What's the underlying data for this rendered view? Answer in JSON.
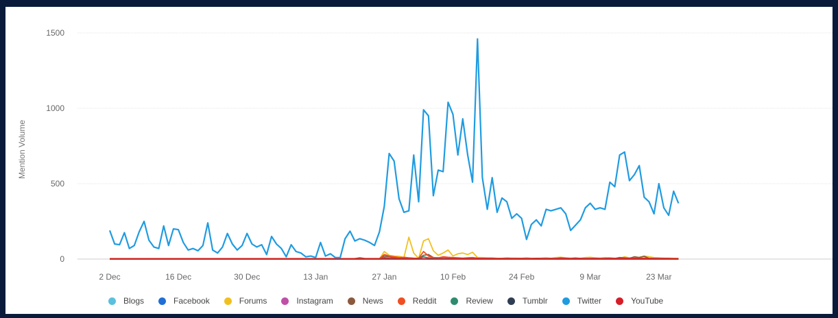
{
  "chart_data": {
    "type": "line",
    "title": "",
    "xlabel": "",
    "ylabel": "Mention Volume",
    "ylim": [
      0,
      1500
    ],
    "y_ticks": [
      0,
      500,
      1000,
      1500
    ],
    "x_ticks": [
      {
        "label": "2 Dec",
        "day": 0
      },
      {
        "label": "16 Dec",
        "day": 14
      },
      {
        "label": "30 Dec",
        "day": 28
      },
      {
        "label": "13 Jan",
        "day": 42
      },
      {
        "label": "27 Jan",
        "day": 56
      },
      {
        "label": "10 Feb",
        "day": 70
      },
      {
        "label": "24 Feb",
        "day": 84
      },
      {
        "label": "9 Mar",
        "day": 98
      },
      {
        "label": "23 Mar",
        "day": 112
      }
    ],
    "grid": true,
    "legend_position": "bottom",
    "series": [
      {
        "name": "Blogs",
        "color": "#5bc0de",
        "values": [
          0,
          0,
          0,
          0,
          0,
          0,
          0,
          0,
          0,
          0,
          0,
          0,
          0,
          0,
          0,
          0,
          0,
          0,
          0,
          0,
          0,
          0,
          0,
          0,
          0,
          0,
          0,
          0,
          0,
          0,
          0,
          0,
          0,
          0,
          0,
          0,
          0,
          0,
          0,
          0,
          0,
          0,
          0,
          0,
          0,
          0,
          0,
          0,
          0,
          0,
          0,
          0,
          0,
          0,
          0,
          0,
          8,
          5,
          3,
          2,
          2,
          1,
          3,
          5,
          2,
          3,
          6,
          4,
          2,
          1,
          3,
          2,
          2,
          1,
          1,
          2,
          1,
          1,
          2,
          1,
          1,
          1,
          1,
          1,
          1,
          1,
          1,
          1,
          1,
          1,
          1,
          1,
          1,
          1,
          1,
          1,
          1,
          1,
          1,
          1,
          1,
          1,
          1,
          1,
          1,
          1,
          1,
          1,
          1,
          1,
          1,
          1,
          1,
          1,
          1,
          1,
          1
        ]
      },
      {
        "name": "Facebook",
        "color": "#1f6fd6",
        "values": [
          0,
          0,
          0,
          0,
          0,
          0,
          0,
          0,
          0,
          0,
          0,
          0,
          0,
          0,
          0,
          0,
          0,
          0,
          0,
          0,
          0,
          0,
          0,
          0,
          0,
          0,
          0,
          0,
          0,
          0,
          0,
          0,
          0,
          0,
          0,
          0,
          0,
          0,
          0,
          0,
          0,
          0,
          0,
          0,
          0,
          0,
          0,
          0,
          0,
          0,
          0,
          0,
          0,
          0,
          0,
          0,
          0,
          0,
          0,
          0,
          0,
          0,
          0,
          0,
          0,
          0,
          0,
          0,
          0,
          0,
          0,
          0,
          0,
          0,
          0,
          0,
          0,
          0,
          0,
          0,
          0,
          0,
          0,
          0,
          0,
          0,
          0,
          0,
          0,
          0,
          0,
          0,
          0,
          0,
          0,
          0,
          0,
          0,
          0,
          0,
          0,
          0,
          0,
          0,
          0,
          0,
          0,
          0,
          0,
          0,
          0,
          0,
          0,
          0,
          0,
          0,
          0
        ]
      },
      {
        "name": "Forums",
        "color": "#f0c020",
        "values": [
          0,
          0,
          0,
          0,
          0,
          0,
          0,
          0,
          0,
          0,
          0,
          0,
          0,
          0,
          0,
          0,
          0,
          0,
          0,
          0,
          0,
          0,
          0,
          0,
          0,
          0,
          0,
          0,
          0,
          0,
          0,
          0,
          0,
          0,
          0,
          0,
          0,
          0,
          0,
          0,
          0,
          0,
          0,
          0,
          0,
          0,
          0,
          0,
          0,
          0,
          0,
          0,
          0,
          0,
          0,
          0,
          50,
          25,
          20,
          18,
          10,
          145,
          40,
          5,
          120,
          135,
          55,
          25,
          40,
          60,
          20,
          35,
          40,
          30,
          45,
          10,
          10,
          8,
          8,
          5,
          5,
          8,
          6,
          6,
          5,
          8,
          5,
          5,
          6,
          8,
          5,
          10,
          12,
          8,
          6,
          8,
          5,
          10,
          12,
          8,
          6,
          10,
          8,
          6,
          5,
          15,
          8,
          6,
          12,
          20,
          15,
          10,
          8,
          6,
          6,
          5,
          4
        ]
      },
      {
        "name": "Instagram",
        "color": "#c04fa8",
        "values": [
          0,
          0,
          0,
          0,
          0,
          0,
          0,
          0,
          0,
          0,
          0,
          0,
          0,
          0,
          0,
          0,
          0,
          0,
          0,
          0,
          0,
          0,
          0,
          0,
          0,
          0,
          0,
          0,
          0,
          0,
          0,
          0,
          0,
          0,
          0,
          0,
          0,
          0,
          0,
          0,
          0,
          0,
          0,
          0,
          0,
          0,
          0,
          0,
          0,
          0,
          0,
          0,
          0,
          0,
          0,
          0,
          0,
          0,
          0,
          0,
          0,
          0,
          0,
          0,
          0,
          0,
          0,
          0,
          0,
          0,
          0,
          0,
          0,
          0,
          0,
          0,
          0,
          0,
          0,
          0,
          0,
          0,
          0,
          0,
          0,
          0,
          0,
          0,
          0,
          0,
          0,
          0,
          0,
          0,
          0,
          0,
          0,
          0,
          0,
          0,
          0,
          0,
          0,
          0,
          0,
          0,
          0,
          0,
          0,
          0,
          0,
          0,
          0,
          0,
          0,
          0,
          0
        ]
      },
      {
        "name": "News",
        "color": "#8b5a3c",
        "values": [
          2,
          2,
          2,
          2,
          2,
          2,
          2,
          2,
          2,
          2,
          2,
          2,
          2,
          2,
          2,
          2,
          2,
          2,
          2,
          2,
          2,
          2,
          2,
          2,
          2,
          2,
          2,
          2,
          2,
          2,
          2,
          2,
          2,
          2,
          2,
          2,
          2,
          2,
          2,
          2,
          2,
          2,
          2,
          2,
          2,
          2,
          2,
          2,
          2,
          2,
          3,
          8,
          4,
          3,
          3,
          3,
          20,
          15,
          10,
          8,
          6,
          5,
          4,
          3,
          25,
          30,
          10,
          8,
          12,
          10,
          8,
          6,
          5,
          5,
          6,
          5,
          4,
          4,
          4,
          3,
          3,
          4,
          3,
          3,
          4,
          3,
          3,
          5,
          4,
          3,
          4,
          3,
          8,
          4,
          3,
          6,
          4,
          3,
          4,
          5,
          3,
          4,
          6,
          4,
          10,
          8,
          5,
          15,
          10,
          18,
          5,
          4,
          3,
          4,
          3,
          2,
          2
        ]
      },
      {
        "name": "Reddit",
        "color": "#f04e23",
        "values": [
          3,
          3,
          3,
          3,
          3,
          3,
          3,
          3,
          3,
          3,
          3,
          3,
          3,
          3,
          3,
          3,
          3,
          3,
          3,
          3,
          3,
          3,
          3,
          3,
          3,
          3,
          3,
          3,
          3,
          3,
          3,
          3,
          3,
          3,
          3,
          3,
          3,
          3,
          3,
          3,
          3,
          3,
          3,
          3,
          3,
          3,
          3,
          3,
          3,
          3,
          3,
          3,
          3,
          3,
          3,
          3,
          30,
          20,
          15,
          10,
          12,
          8,
          6,
          5,
          50,
          20,
          10,
          8,
          15,
          12,
          10,
          8,
          6,
          8,
          10,
          6,
          5,
          5,
          4,
          4,
          4,
          4,
          4,
          4,
          4,
          4,
          4,
          4,
          4,
          4,
          4,
          4,
          8,
          6,
          4,
          4,
          5,
          4,
          4,
          5,
          4,
          4,
          5,
          4,
          5,
          6,
          5,
          5,
          4,
          6,
          5,
          4,
          4,
          4,
          4,
          3,
          3
        ]
      },
      {
        "name": "Review",
        "color": "#2e8b6f",
        "values": [
          0,
          0,
          0,
          0,
          0,
          0,
          0,
          0,
          0,
          0,
          0,
          0,
          0,
          0,
          0,
          0,
          0,
          0,
          0,
          0,
          0,
          0,
          0,
          0,
          0,
          0,
          0,
          0,
          0,
          0,
          0,
          0,
          0,
          0,
          0,
          0,
          0,
          0,
          0,
          0,
          0,
          0,
          0,
          0,
          0,
          0,
          0,
          0,
          0,
          0,
          0,
          0,
          0,
          0,
          0,
          0,
          10,
          5,
          3,
          2,
          2,
          1,
          2,
          3,
          15,
          8,
          4,
          3,
          2,
          2,
          1,
          1,
          1,
          1,
          1,
          1,
          1,
          1,
          1,
          1,
          1,
          1,
          1,
          1,
          1,
          1,
          1,
          1,
          1,
          1,
          1,
          1,
          1,
          1,
          1,
          1,
          1,
          1,
          1,
          1,
          1,
          1,
          1,
          1,
          1,
          1,
          1,
          1,
          1,
          1,
          1,
          1,
          1,
          1,
          1,
          1,
          1
        ]
      },
      {
        "name": "Tumblr",
        "color": "#2f3e55",
        "values": [
          0,
          0,
          0,
          0,
          0,
          0,
          0,
          0,
          0,
          0,
          0,
          0,
          0,
          0,
          0,
          0,
          0,
          0,
          0,
          0,
          0,
          0,
          0,
          0,
          0,
          0,
          0,
          0,
          0,
          0,
          0,
          0,
          0,
          0,
          0,
          0,
          0,
          0,
          0,
          0,
          0,
          0,
          0,
          0,
          0,
          0,
          0,
          0,
          0,
          0,
          0,
          0,
          0,
          0,
          0,
          0,
          2,
          1,
          1,
          1,
          1,
          1,
          1,
          1,
          2,
          1,
          1,
          1,
          1,
          1,
          1,
          1,
          1,
          1,
          1,
          1,
          1,
          1,
          1,
          1,
          1,
          1,
          1,
          1,
          1,
          1,
          1,
          1,
          1,
          1,
          1,
          1,
          1,
          1,
          1,
          1,
          1,
          1,
          1,
          1,
          1,
          1,
          1,
          1,
          1,
          1,
          1,
          1,
          1,
          1,
          1,
          1,
          1,
          1,
          1,
          1,
          1
        ]
      },
      {
        "name": "Twitter",
        "color": "#1f9be0",
        "values": [
          190,
          100,
          95,
          175,
          70,
          90,
          180,
          250,
          125,
          80,
          70,
          220,
          90,
          200,
          195,
          110,
          60,
          70,
          55,
          90,
          240,
          60,
          40,
          80,
          170,
          100,
          60,
          90,
          170,
          100,
          80,
          95,
          30,
          150,
          100,
          70,
          15,
          95,
          50,
          40,
          15,
          20,
          10,
          110,
          20,
          35,
          10,
          10,
          135,
          185,
          120,
          135,
          125,
          110,
          90,
          180,
          350,
          700,
          650,
          400,
          310,
          320,
          690,
          380,
          990,
          950,
          420,
          590,
          580,
          1040,
          960,
          690,
          930,
          690,
          510,
          1460,
          540,
          330,
          540,
          310,
          405,
          380,
          270,
          300,
          270,
          130,
          230,
          260,
          220,
          330,
          320,
          330,
          340,
          300,
          190,
          225,
          260,
          340,
          370,
          330,
          340,
          330,
          510,
          480,
          690,
          710,
          520,
          560,
          620,
          410,
          380,
          300,
          500,
          340,
          290,
          450,
          370
        ]
      },
      {
        "name": "YouTube",
        "color": "#d61e28",
        "values": [
          0,
          0,
          0,
          0,
          0,
          0,
          0,
          0,
          0,
          0,
          0,
          0,
          0,
          0,
          0,
          0,
          0,
          0,
          0,
          0,
          0,
          0,
          0,
          0,
          0,
          0,
          0,
          0,
          0,
          0,
          0,
          0,
          0,
          0,
          0,
          0,
          0,
          0,
          0,
          0,
          0,
          0,
          0,
          0,
          0,
          0,
          0,
          0,
          0,
          0,
          0,
          0,
          0,
          0,
          0,
          0,
          3,
          2,
          2,
          1,
          1,
          1,
          1,
          1,
          2,
          1,
          1,
          1,
          1,
          1,
          1,
          1,
          1,
          1,
          1,
          1,
          1,
          1,
          1,
          1,
          1,
          1,
          1,
          1,
          1,
          1,
          1,
          1,
          1,
          1,
          1,
          1,
          1,
          1,
          1,
          1,
          1,
          1,
          1,
          1,
          1,
          1,
          1,
          1,
          1,
          1,
          1,
          1,
          1,
          1,
          1,
          1,
          1,
          1,
          1,
          1,
          1
        ]
      }
    ]
  }
}
